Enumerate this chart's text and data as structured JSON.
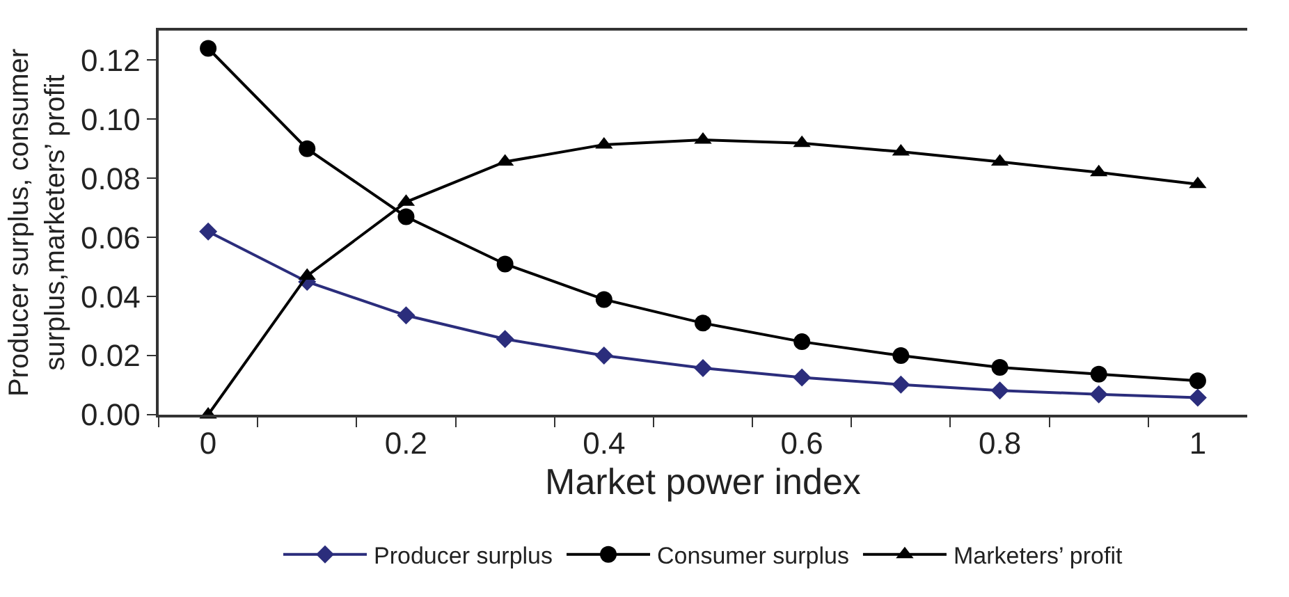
{
  "chart_data": {
    "type": "line",
    "xlabel": "Market power index",
    "ylabel": "Producer surplus, consumer\nsurplus,marketers’ profit",
    "x": [
      0,
      0.1,
      0.2,
      0.3,
      0.4,
      0.5,
      0.6,
      0.7,
      0.8,
      0.9,
      1
    ],
    "series": [
      {
        "name": "Producer surplus",
        "color": "#2b2d7c",
        "marker": "diamond",
        "values": [
          0.062,
          0.045,
          0.0336,
          0.0256,
          0.02,
          0.0158,
          0.0126,
          0.0102,
          0.0082,
          0.0069,
          0.0058
        ]
      },
      {
        "name": "Consumer surplus",
        "color": "#000000",
        "marker": "circle",
        "values": [
          0.124,
          0.09,
          0.067,
          0.051,
          0.039,
          0.031,
          0.0247,
          0.02,
          0.016,
          0.0137,
          0.0115
        ]
      },
      {
        "name": "Marketers’ profit",
        "color": "#000000",
        "marker": "triangle",
        "values": [
          0,
          0.047,
          0.072,
          0.0856,
          0.0914,
          0.093,
          0.0919,
          0.089,
          0.0856,
          0.082,
          0.078
        ]
      }
    ],
    "xlim": [
      -0.05,
      1.05
    ],
    "xticks": [
      0,
      0.2,
      0.4,
      0.6,
      0.8,
      1,
      {
        "value": -0.05,
        "label": null
      },
      {
        "value": 0.05,
        "label": null
      },
      {
        "value": 0.15,
        "label": null
      },
      {
        "value": 0.25,
        "label": null
      },
      {
        "value": 0.35,
        "label": null
      },
      {
        "value": 0.45,
        "label": null
      },
      {
        "value": 0.55,
        "label": null
      },
      {
        "value": 0.65,
        "label": null
      },
      {
        "value": 0.75,
        "label": null
      },
      {
        "value": 0.85,
        "label": null
      },
      {
        "value": 0.95,
        "label": null
      }
    ],
    "ylim": [
      0,
      0.13
    ],
    "yticks": [
      {
        "value": 0,
        "label": "0.00"
      },
      {
        "value": 0.02,
        "label": "0.02"
      },
      {
        "value": 0.04,
        "label": "0.04"
      },
      {
        "value": 0.06,
        "label": "0.06"
      },
      {
        "value": 0.08,
        "label": "0.08"
      },
      {
        "value": 0.1,
        "label": "0.10"
      },
      {
        "value": 0.12,
        "label": "0.12"
      }
    ],
    "legend": "bottom",
    "line_style": "solid"
  }
}
